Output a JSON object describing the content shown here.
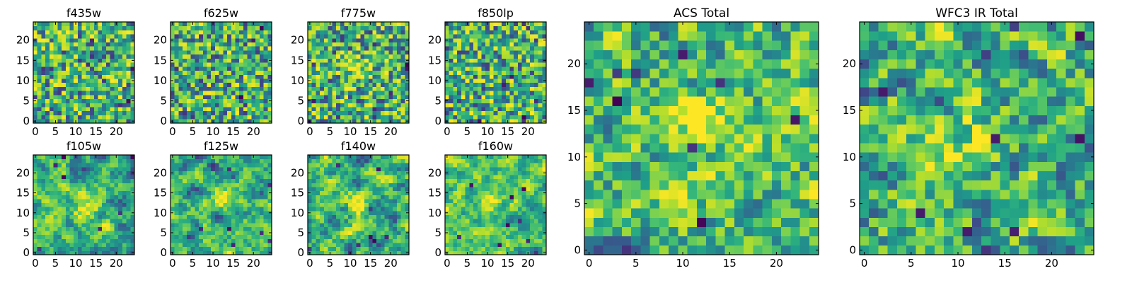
{
  "colors": {
    "background": "#ffffff",
    "axes": "#000000",
    "colormap": "viridis"
  },
  "chart_data": [
    {
      "type": "heatmap",
      "title": "f435w",
      "xlim": [
        0,
        24
      ],
      "ylim": [
        0,
        24
      ],
      "xticks": [
        0,
        5,
        10,
        15,
        20
      ],
      "yticks": [
        0,
        5,
        10,
        15,
        20
      ],
      "grid": false,
      "legend": "none",
      "seed": 11,
      "smooth": 0.05,
      "hot": null
    },
    {
      "type": "heatmap",
      "title": "f625w",
      "xlim": [
        0,
        24
      ],
      "ylim": [
        0,
        24
      ],
      "xticks": [
        0,
        5,
        10,
        15,
        20
      ],
      "yticks": [
        0,
        5,
        10,
        15,
        20
      ],
      "grid": false,
      "legend": "none",
      "seed": 23,
      "smooth": 0.05,
      "hot": null
    },
    {
      "type": "heatmap",
      "title": "f775w",
      "xlim": [
        0,
        24
      ],
      "ylim": [
        0,
        24
      ],
      "xticks": [
        0,
        5,
        10,
        15,
        20
      ],
      "yticks": [
        0,
        5,
        10,
        15,
        20
      ],
      "grid": false,
      "legend": "none",
      "seed": 37,
      "smooth": 0.1,
      "hot": [
        12,
        13
      ]
    },
    {
      "type": "heatmap",
      "title": "f850lp",
      "xlim": [
        0,
        24
      ],
      "ylim": [
        0,
        24
      ],
      "xticks": [
        0,
        5,
        10,
        15,
        20
      ],
      "yticks": [
        0,
        5,
        10,
        15,
        20
      ],
      "grid": false,
      "legend": "none",
      "seed": 41,
      "smooth": 0.05,
      "hot": null
    },
    {
      "type": "heatmap",
      "title": "f105w",
      "xlim": [
        0,
        24
      ],
      "ylim": [
        0,
        24
      ],
      "xticks": [
        0,
        5,
        10,
        15,
        20
      ],
      "yticks": [
        0,
        5,
        10,
        15,
        20
      ],
      "grid": false,
      "legend": "none",
      "seed": 53,
      "smooth": 0.5,
      "hot": [
        13,
        11
      ]
    },
    {
      "type": "heatmap",
      "title": "f125w",
      "xlim": [
        0,
        24
      ],
      "ylim": [
        0,
        24
      ],
      "xticks": [
        0,
        5,
        10,
        15,
        20
      ],
      "yticks": [
        0,
        5,
        10,
        15,
        20
      ],
      "grid": false,
      "legend": "none",
      "seed": 61,
      "smooth": 0.5,
      "hot": [
        12,
        13
      ]
    },
    {
      "type": "heatmap",
      "title": "f140w",
      "xlim": [
        0,
        24
      ],
      "ylim": [
        0,
        24
      ],
      "xticks": [
        0,
        5,
        10,
        15,
        20
      ],
      "yticks": [
        0,
        5,
        10,
        15,
        20
      ],
      "grid": false,
      "legend": "none",
      "seed": 71,
      "smooth": 0.5,
      "hot": [
        13,
        12
      ]
    },
    {
      "type": "heatmap",
      "title": "f160w",
      "xlim": [
        0,
        24
      ],
      "ylim": [
        0,
        24
      ],
      "xticks": [
        0,
        5,
        10,
        15,
        20
      ],
      "yticks": [
        0,
        5,
        10,
        15,
        20
      ],
      "grid": false,
      "legend": "none",
      "seed": 83,
      "smooth": 0.55,
      "hot": [
        12,
        12
      ]
    },
    {
      "type": "heatmap",
      "title": "ACS Total",
      "xlim": [
        0,
        24
      ],
      "ylim": [
        0,
        24
      ],
      "xticks": [
        0,
        5,
        10,
        15,
        20
      ],
      "yticks": [
        0,
        5,
        10,
        15,
        20
      ],
      "grid": false,
      "legend": "none",
      "seed": 97,
      "smooth": 0.15,
      "hot": [
        12,
        14
      ]
    },
    {
      "type": "heatmap",
      "title": "WFC3 IR Total",
      "xlim": [
        0,
        24
      ],
      "ylim": [
        0,
        24
      ],
      "xticks": [
        0,
        5,
        10,
        15,
        20
      ],
      "yticks": [
        0,
        5,
        10,
        15,
        20
      ],
      "grid": false,
      "legend": "none",
      "seed": 101,
      "smooth": 0.35,
      "hot": [
        12,
        12
      ]
    }
  ]
}
